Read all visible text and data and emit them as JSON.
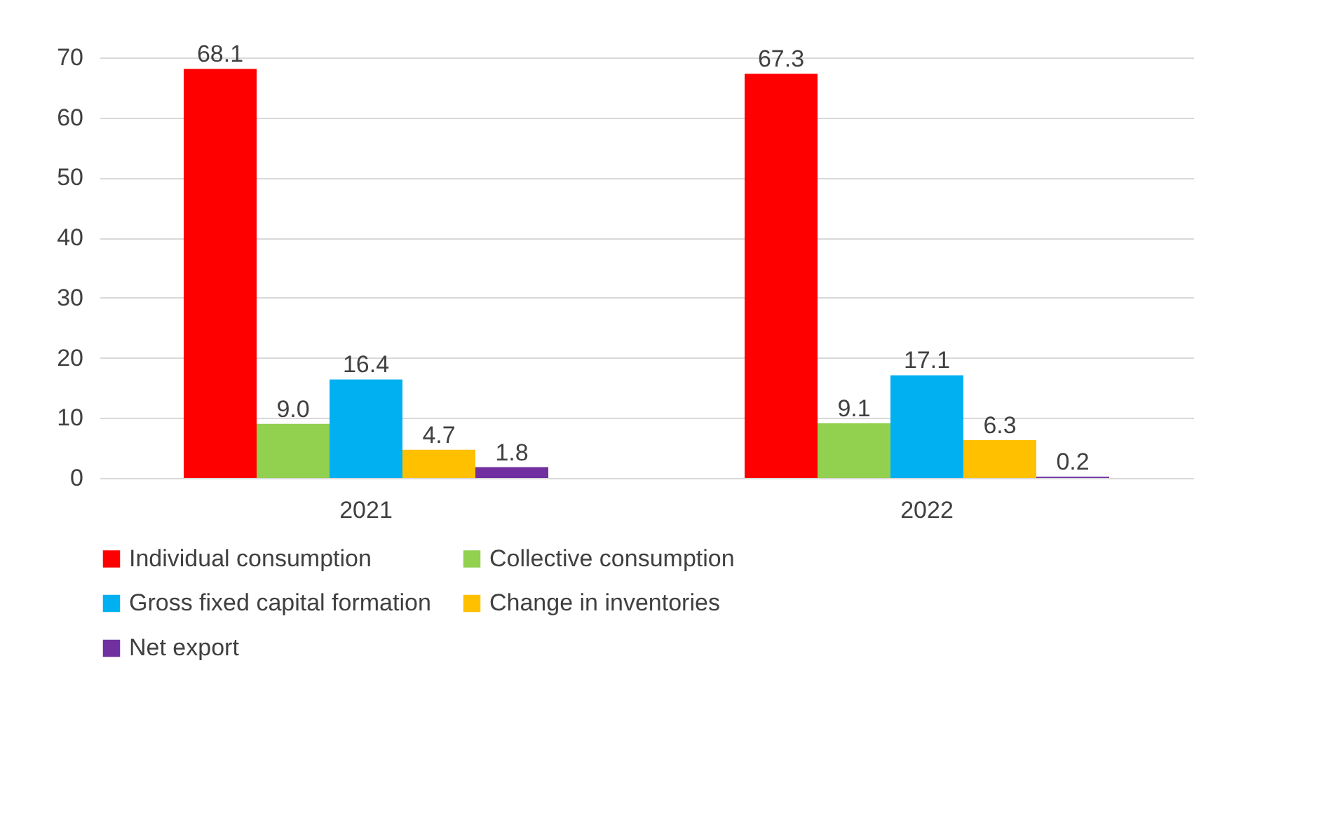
{
  "chart_data": {
    "type": "bar",
    "categories": [
      "2021",
      "2022"
    ],
    "series": [
      {
        "name": "Individual consumption",
        "color": "#ff0000",
        "values": [
          68.1,
          67.3
        ]
      },
      {
        "name": "Collective consumption",
        "color": "#92d050",
        "values": [
          9.0,
          9.1
        ]
      },
      {
        "name": "Gross fixed capital formation",
        "color": "#00b0f0",
        "values": [
          16.4,
          17.1
        ]
      },
      {
        "name": "Change in inventories",
        "color": "#ffc000",
        "values": [
          4.7,
          6.3
        ]
      },
      {
        "name": "Net export",
        "color": "#7030a0",
        "values": [
          1.8,
          0.2
        ]
      }
    ],
    "value_labels": [
      [
        "68.1",
        "67.3"
      ],
      [
        "9.0",
        "9.1"
      ],
      [
        "16.4",
        "17.1"
      ],
      [
        "4.7",
        "6.3"
      ],
      [
        "1.8",
        "0.2"
      ]
    ],
    "ylim": [
      0,
      70
    ],
    "yticks": [
      0,
      10,
      20,
      30,
      40,
      50,
      60,
      70
    ],
    "grid": "y",
    "legend": "bottom"
  }
}
